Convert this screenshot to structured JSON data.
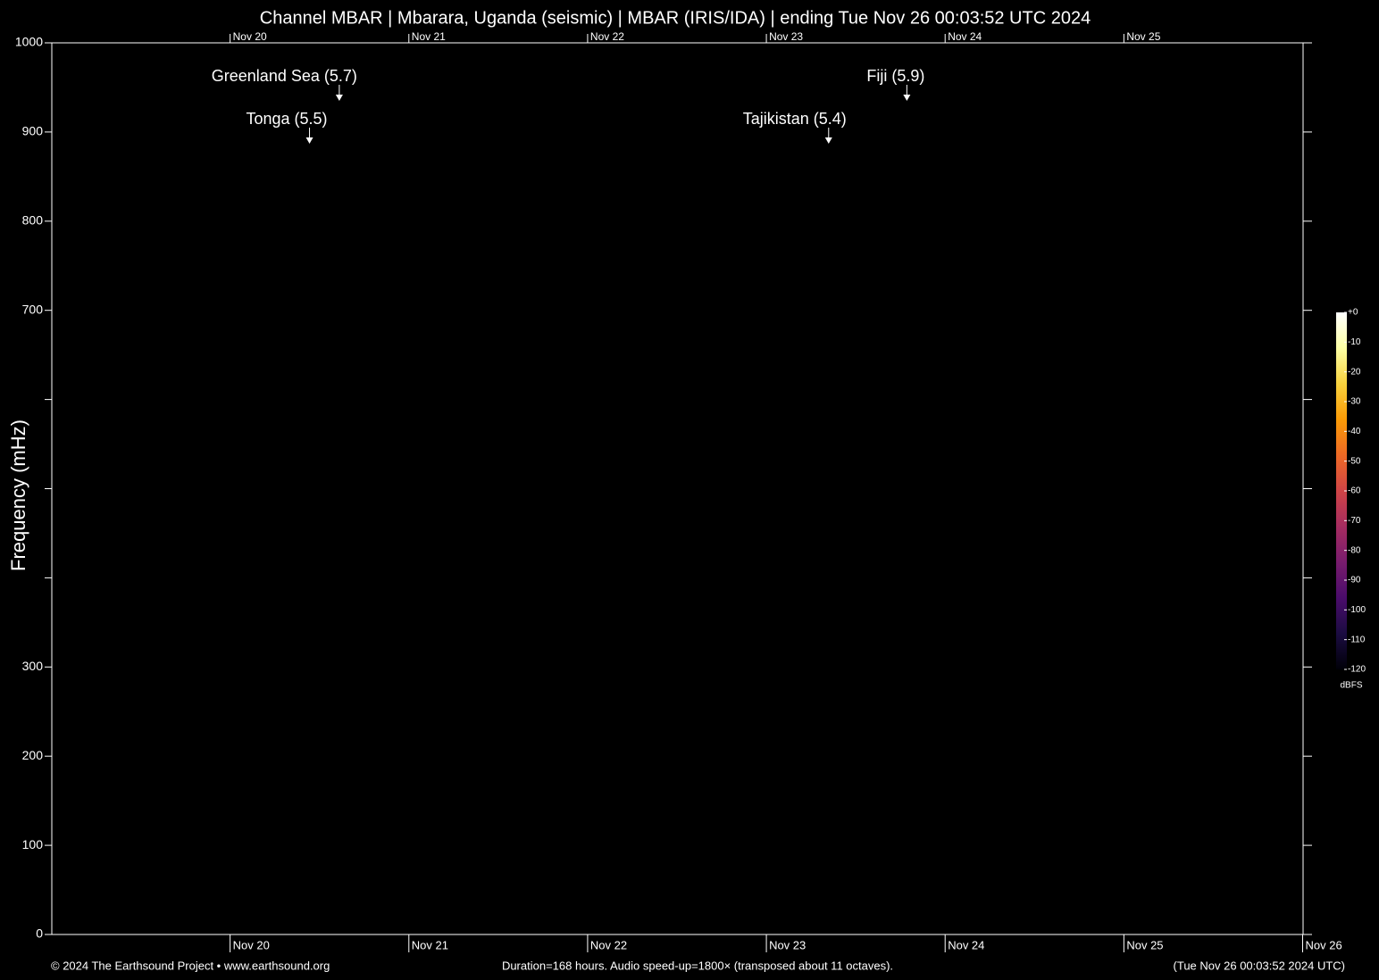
{
  "chart_data": {
    "type": "spectrogram",
    "title": "Channel MBAR | Mbarara, Uganda (seismic) | MBAR (IRIS/IDA) | ending Tue Nov 26 00:03:52 UTC 2024",
    "y_label": "Frequency (mHz)",
    "ylim": [
      0,
      1000
    ],
    "yticks": [
      0,
      100,
      200,
      300,
      {
        "value": 400,
        "label": null
      },
      {
        "value": 500,
        "label": null
      },
      {
        "value": 600,
        "label": null
      },
      700,
      800,
      900,
      1000
    ],
    "xlim": [
      0,
      168
    ],
    "xticks": [
      {
        "value": 23.94,
        "label": "Nov 20"
      },
      {
        "value": 47.94,
        "label": "Nov 21"
      },
      {
        "value": 71.94,
        "label": "Nov 22"
      },
      {
        "value": 95.94,
        "label": "Nov 23"
      },
      {
        "value": 119.94,
        "label": "Nov 24"
      },
      {
        "value": 143.94,
        "label": "Nov 25"
      },
      {
        "value": 167.94,
        "label": "Nov 26"
      }
    ],
    "annotations": [
      {
        "label": "Greenland Sea (5.7)",
        "x": 38.6
      },
      {
        "label": "Tonga (5.5)",
        "x": 34.6
      },
      {
        "label": "Fiji (5.9)",
        "x": 114.8
      },
      {
        "label": "Tajikistan (5.4)",
        "x": 104.3
      }
    ],
    "colorbar": {
      "label": "dBFS",
      "lim": [
        -120,
        0
      ],
      "ticks": [
        {
          "value": 0,
          "label": "+0"
        },
        -10,
        -20,
        -30,
        -40,
        -50,
        -60,
        -70,
        -80,
        -90,
        -100,
        -110,
        -120
      ],
      "colors": [
        "#000008",
        "#1b0c41",
        "#4a0c6b",
        "#781c6d",
        "#a52c60",
        "#cf4446",
        "#ed6925",
        "#fb9b06",
        "#f7d13d",
        "#fcffa4",
        "#ffffff"
      ]
    },
    "footer": {
      "left": "© 2024 The Earthsound Project • www.earthsound.org",
      "center": "Duration=168 hours. Audio speed-up=1800× (transposed about 11 octaves).",
      "right": "(Tue Nov 26 00:03:52 2024 UTC)"
    }
  }
}
